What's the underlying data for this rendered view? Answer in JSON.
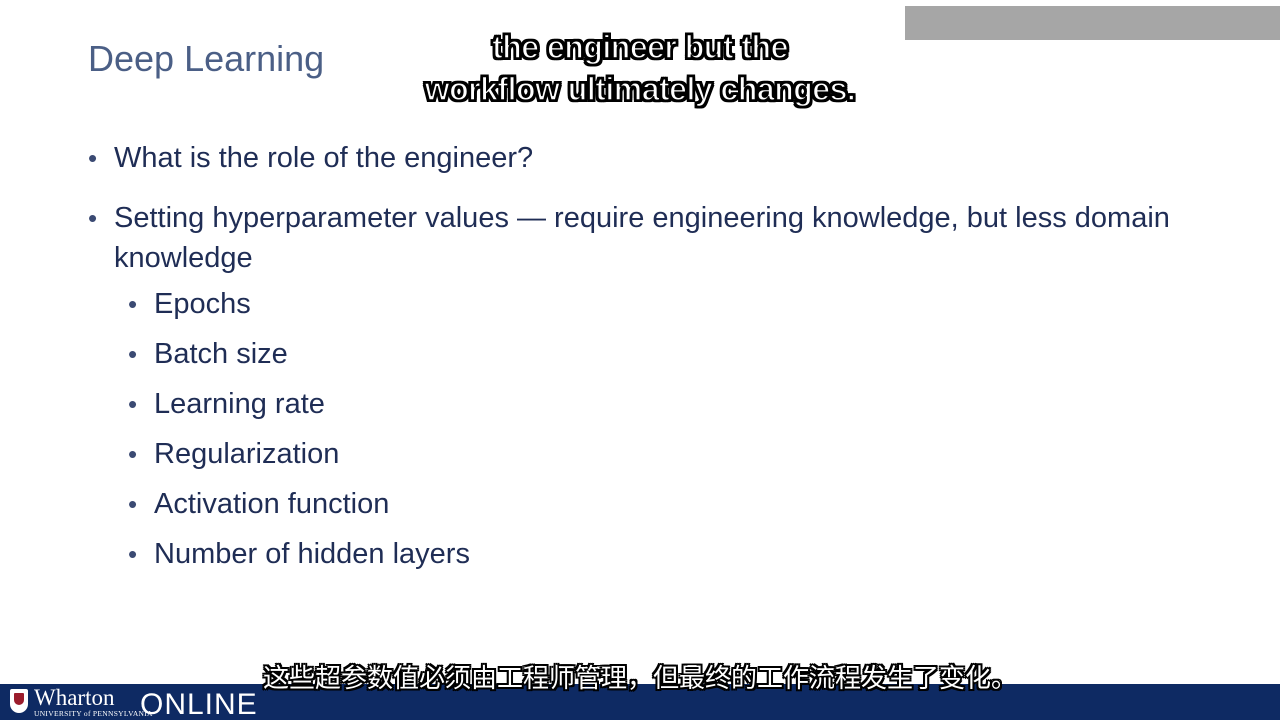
{
  "slide": {
    "title": "Deep Learning",
    "bullets": [
      "What is the role of the engineer?",
      "Setting hyperparameter values — require engineering knowledge, but less domain knowledge"
    ],
    "sub_bullets": [
      "Epochs",
      "Batch size",
      "Learning rate",
      "Regularization",
      "Activation function",
      "Number of hidden layers"
    ],
    "bullet_glyph": "•"
  },
  "captions": {
    "english_line1": "the engineer but the",
    "english_line2": "workflow ultimately changes.",
    "chinese": "这些超参数值必须由工程师管理，但最终的工作流程发生了变化。"
  },
  "footer": {
    "brand_name": "Wharton",
    "brand_sub": "UNIVERSITY of PENNSYLVANIA",
    "brand_online": "ONLINE"
  },
  "colors": {
    "title": "#4b5f86",
    "body_text": "#1f2d55",
    "footer_bg": "#0e2a63",
    "shield_red": "#9b1c2c",
    "top_bar": "#a6a6a6"
  }
}
